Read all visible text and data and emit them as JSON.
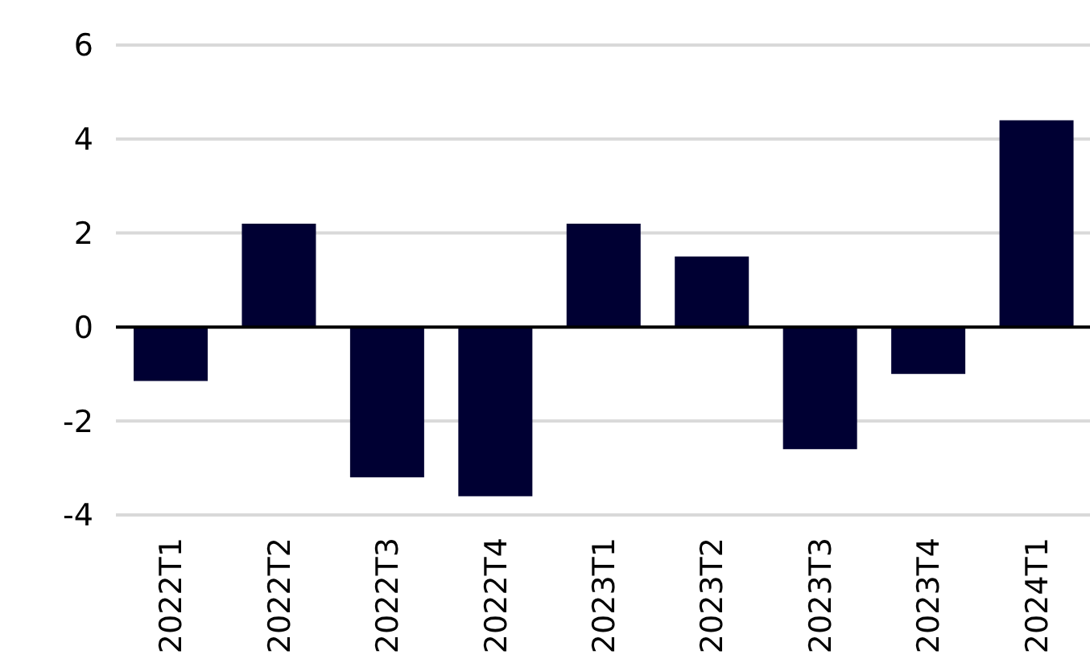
{
  "chart_data": {
    "type": "bar",
    "categories": [
      "2022T1",
      "2022T2",
      "2022T3",
      "2022T4",
      "2023T1",
      "2023T2",
      "2023T3",
      "2023T4",
      "2024T1"
    ],
    "values": [
      -1.15,
      2.2,
      -3.2,
      -3.6,
      2.2,
      1.5,
      -2.6,
      -1.0,
      4.4
    ],
    "color": "#000033",
    "ylim": [
      -4,
      6
    ],
    "yticks": [
      -4,
      -2,
      0,
      2,
      4,
      6
    ],
    "grid": "y"
  }
}
